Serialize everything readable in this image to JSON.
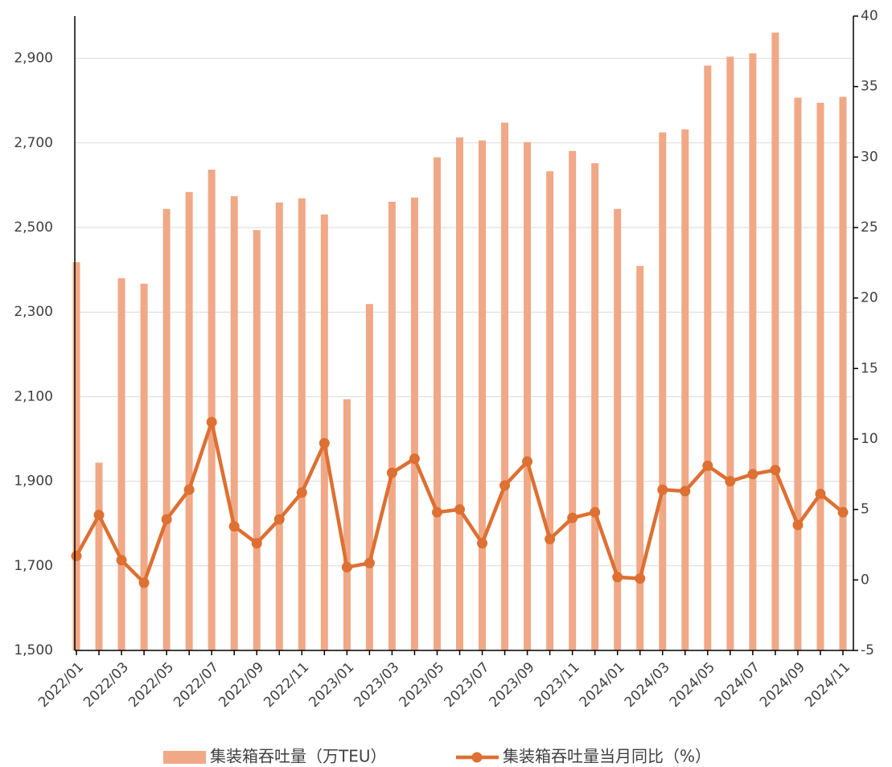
{
  "chart_data": {
    "type": "bar-line",
    "categories": [
      "2022/01",
      null,
      "2022/03",
      null,
      "2022/05",
      null,
      "2022/07",
      null,
      "2022/09",
      null,
      "2022/11",
      null,
      "2023/01",
      null,
      "2023/03",
      null,
      "2023/05",
      null,
      "2023/07",
      null,
      "2023/09",
      null,
      "2023/11",
      null,
      "2024/01",
      null,
      "2024/03",
      null,
      "2024/05",
      null,
      "2024/07",
      null,
      "2024/09",
      null,
      "2024/11"
    ],
    "series": [
      {
        "name": "集装箱吞吐量（万TEU）",
        "type": "bar",
        "color": "#f0a886",
        "values": [
          2418,
          1944,
          2380,
          2367,
          2544,
          2584,
          2637,
          2574,
          2494,
          2559,
          2569,
          2531,
          2094,
          2319,
          2561,
          2571,
          2666,
          2713,
          2706,
          2748,
          2702,
          2633,
          2681,
          2652,
          2544,
          2409,
          2725,
          2732,
          2883,
          2904,
          2912,
          2961,
          2807,
          2795,
          2809
        ]
      },
      {
        "name": "集装箱吞吐量当月同比（%）",
        "type": "line",
        "axis": "y2",
        "color": "#dd7032",
        "values": [
          1.7,
          4.6,
          1.4,
          -0.2,
          4.3,
          6.4,
          11.2,
          3.8,
          2.6,
          4.3,
          6.2,
          9.7,
          0.9,
          1.2,
          7.6,
          8.6,
          4.8,
          5.0,
          2.6,
          6.7,
          8.4,
          2.9,
          4.4,
          4.8,
          0.2,
          0.1,
          6.4,
          6.3,
          8.1,
          7.0,
          7.5,
          7.8,
          3.9,
          6.1,
          4.8
        ]
      }
    ],
    "ylim": [
      1500,
      3000
    ],
    "yticks": [
      {
        "value": 1500,
        "label": "1,500"
      },
      {
        "value": 1700,
        "label": "1,700"
      },
      {
        "value": 1900,
        "label": "1,900"
      },
      {
        "value": 2100,
        "label": "2,100"
      },
      {
        "value": 2300,
        "label": "2,300"
      },
      {
        "value": 2500,
        "label": "2,500"
      },
      {
        "value": 2700,
        "label": "2,700"
      },
      {
        "value": 2900,
        "label": "2,900"
      }
    ],
    "y2lim": [
      -5,
      40
    ],
    "y2ticks": [
      -5,
      0,
      5,
      10,
      15,
      20,
      25,
      30,
      35,
      40
    ],
    "grid": true,
    "legend": "bottom"
  }
}
